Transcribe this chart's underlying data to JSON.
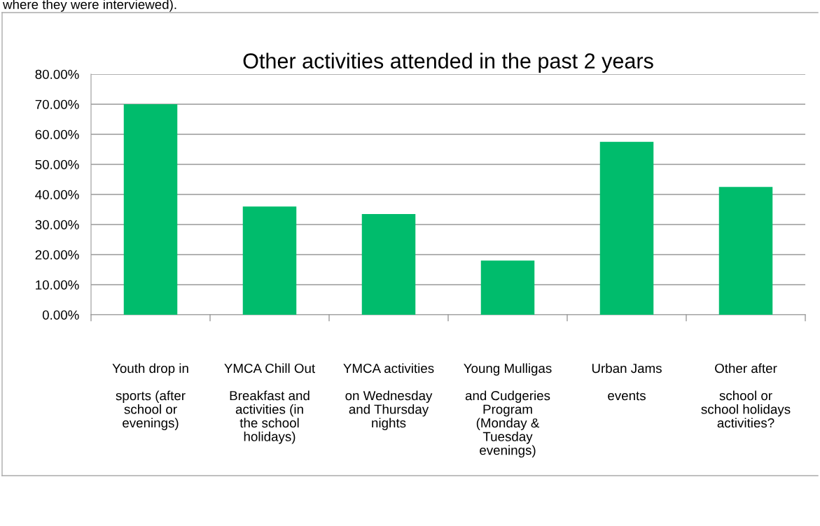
{
  "chart_data": {
    "type": "bar",
    "title": "Other activities attended in the past 2 years",
    "categories": [
      "Youth drop in\n\nsports (after\nschool or\nevenings)",
      "YMCA Chill Out\n\nBreakfast and\nactivities (in\nthe school\nholidays)",
      "YMCA activities\n\non Wednesday\nand Thursday\nnights",
      "Young Mulligas\n\nand Cudgeries\nProgram\n(Monday &\nTuesday\nevenings)",
      "Urban Jams\n\nevents",
      "Other after\n\nschool or\nschool holidays\nactivities?"
    ],
    "values": [
      70,
      36,
      33.5,
      18,
      57.5,
      42.5
    ],
    "color": "#00bc6c",
    "ylim": [
      0,
      80
    ],
    "yticks": [
      {
        "value": 0,
        "label": "0.00%"
      },
      {
        "value": 10,
        "label": "10.00%"
      },
      {
        "value": 20,
        "label": "20.00%"
      },
      {
        "value": 30,
        "label": "30.00%"
      },
      {
        "value": 40,
        "label": "40.00%"
      },
      {
        "value": 50,
        "label": "50.00%"
      },
      {
        "value": 60,
        "label": "60.00%"
      },
      {
        "value": 70,
        "label": "70.00%"
      },
      {
        "value": 80,
        "label": "80.00%"
      }
    ],
    "grid": "y",
    "annotations": [
      "where they were interviewed)."
    ]
  }
}
